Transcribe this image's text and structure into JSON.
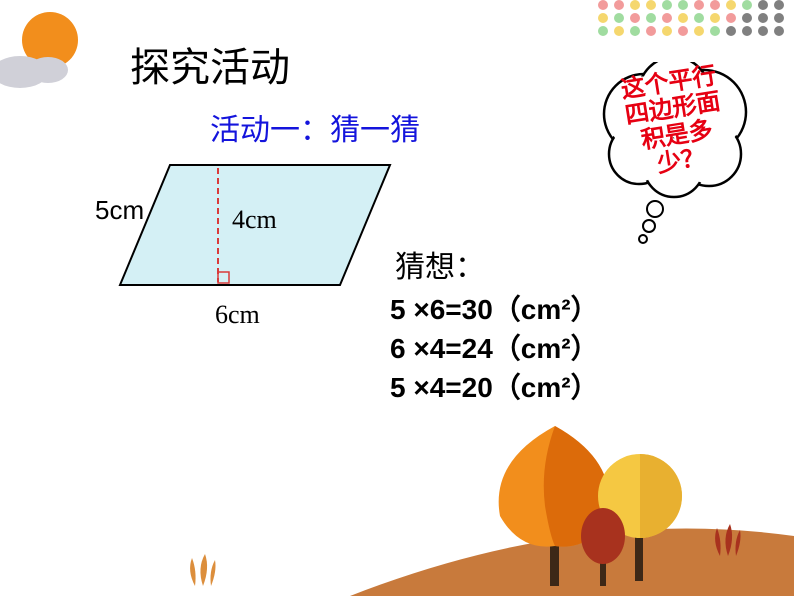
{
  "title": "探究活动",
  "subtitle": "活动一：猜一猜",
  "bubble_text": "这个平行四边形面积是多少？",
  "diagram": {
    "side_label": "5cm",
    "height_label": "4cm",
    "base_label": "6cm",
    "fill_color": "#d4f0f5",
    "stroke_color": "#000000",
    "dash_color": "#d93a3a"
  },
  "guess_label": "猜想：",
  "equations": [
    {
      "expr": "5 ×6=30",
      "unit": "（cm²）"
    },
    {
      "expr": "6 ×4=24",
      "unit": "（cm²）"
    },
    {
      "expr": "5 ×4=20",
      "unit": "（cm²）"
    }
  ],
  "colors": {
    "title_color": "#000000",
    "subtitle_color": "#1414dc",
    "bubble_text_color": "#e60012",
    "equation_color": "#000000",
    "dot_colors": [
      "#f29b9b",
      "#f5d76e",
      "#a0dca0",
      "#808080"
    ],
    "sun_color": "#f28e1c",
    "cloud_color": "#c8c8d0",
    "tree_orange": "#f28e1c",
    "tree_orange_dark": "#dc6b0a",
    "tree_yellow": "#f5c842",
    "tree_red": "#a8321e",
    "trunk_color": "#3d2817",
    "ground_color": "#c87a3c"
  }
}
